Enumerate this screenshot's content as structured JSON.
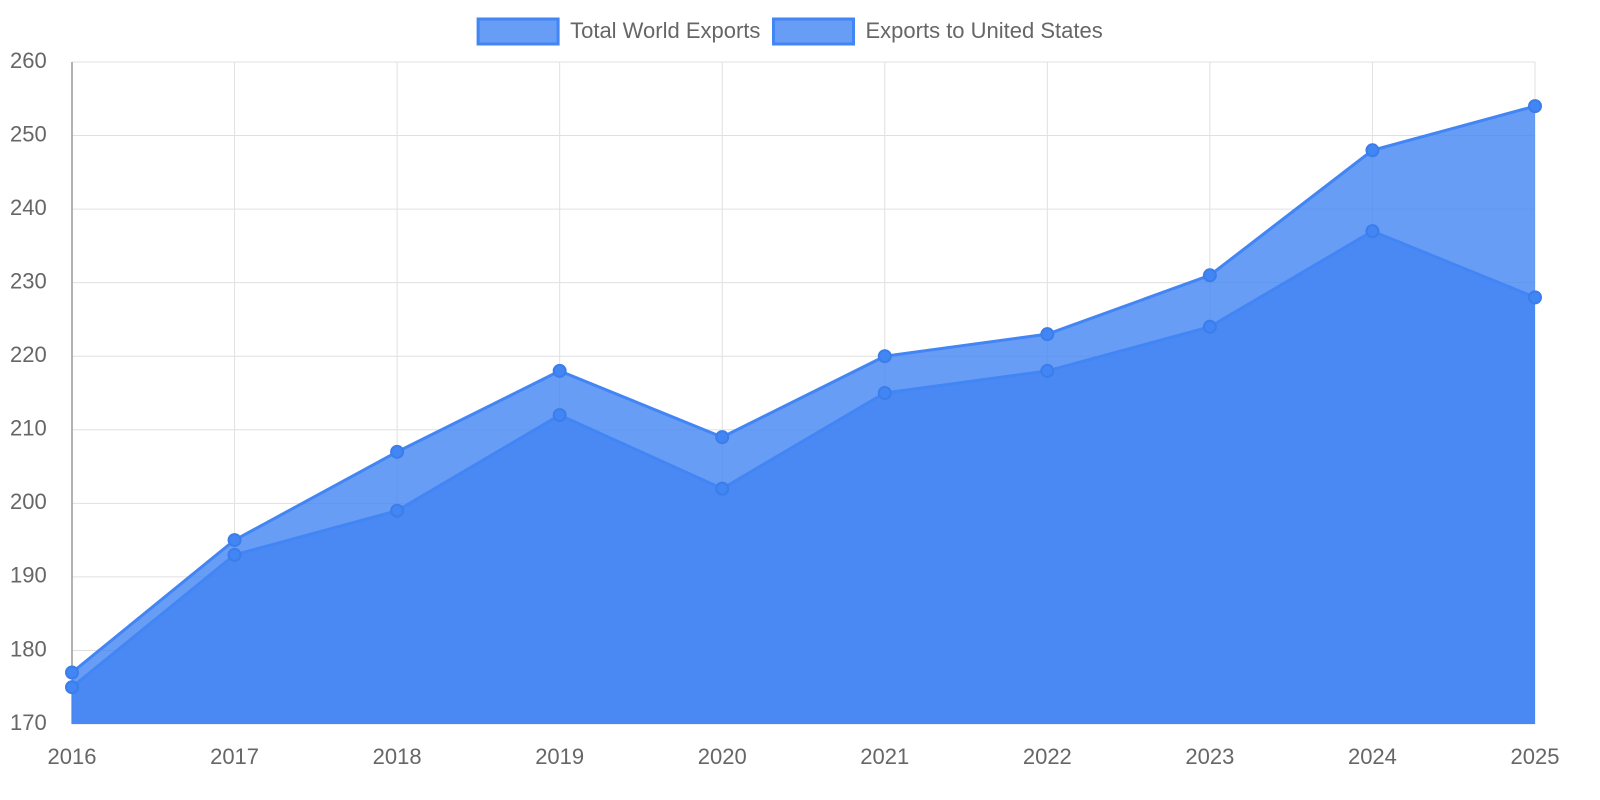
{
  "chart_data": {
    "type": "area",
    "x": [
      2016,
      2017,
      2018,
      2019,
      2020,
      2021,
      2022,
      2023,
      2024,
      2025
    ],
    "xlim": [
      2016,
      2025
    ],
    "xticks": [
      2016,
      2017,
      2018,
      2019,
      2020,
      2021,
      2022,
      2023,
      2024,
      2025
    ],
    "ylim": [
      170,
      260
    ],
    "yticks": [
      170,
      180,
      190,
      200,
      210,
      220,
      230,
      240,
      250,
      260
    ],
    "grid": true,
    "legend": "top",
    "series": [
      {
        "name": "Total World Exports",
        "color": "#4285f4",
        "values": [
          177,
          195,
          207,
          218,
          209,
          220,
          223,
          231,
          248,
          254
        ]
      },
      {
        "name": "Exports to United States",
        "color": "#4285f4",
        "values": [
          175,
          193,
          199,
          212,
          202,
          215,
          218,
          224,
          237,
          228
        ]
      }
    ]
  }
}
